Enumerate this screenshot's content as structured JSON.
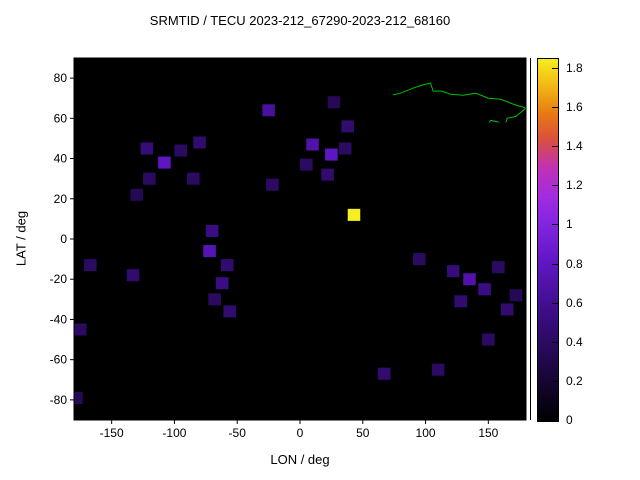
{
  "chart_data": {
    "type": "heatmap",
    "title": "SRMTID / TECU 2023-212_67290-2023-212_68160",
    "xlabel": "LON / deg",
    "ylabel": "LAT / deg",
    "xlim": [
      -180,
      180
    ],
    "ylim": [
      -90,
      90
    ],
    "x_ticks": [
      -150,
      -100,
      -50,
      0,
      50,
      100,
      150
    ],
    "y_ticks": [
      -80,
      -60,
      -40,
      -20,
      0,
      20,
      40,
      60,
      80
    ],
    "grid": false,
    "map_background": "#000000",
    "coastline_color": "#00c000",
    "colorbar": {
      "position": "right",
      "range": [
        0,
        1.85
      ],
      "ticks": [
        0,
        0.2,
        0.4,
        0.6,
        0.8,
        1,
        1.2,
        1.4,
        1.6,
        1.8
      ],
      "palette": [
        {
          "t": 0.0,
          "c": "#000000"
        },
        {
          "t": 0.15,
          "c": "#1e0745"
        },
        {
          "t": 0.3,
          "c": "#3c0d85"
        },
        {
          "t": 0.45,
          "c": "#6317c8"
        },
        {
          "t": 0.55,
          "c": "#8426e0"
        },
        {
          "t": 0.62,
          "c": "#a22ce0"
        },
        {
          "t": 0.7,
          "c": "#c031b5"
        },
        {
          "t": 0.78,
          "c": "#da513b"
        },
        {
          "t": 0.85,
          "c": "#e87a14"
        },
        {
          "t": 0.92,
          "c": "#f2b313"
        },
        {
          "t": 1.0,
          "c": "#f6ee20"
        }
      ]
    },
    "cell_size_deg": {
      "lon": 10,
      "lat": 6
    },
    "cells": [
      {
        "lon": -25,
        "lat": 64,
        "v": 0.65
      },
      {
        "lon": 27,
        "lat": 68,
        "v": 0.35
      },
      {
        "lon": 38,
        "lat": 56,
        "v": 0.45
      },
      {
        "lon": -122,
        "lat": 45,
        "v": 0.5
      },
      {
        "lon": -108,
        "lat": 38,
        "v": 0.8
      },
      {
        "lon": -95,
        "lat": 44,
        "v": 0.4
      },
      {
        "lon": -80,
        "lat": 48,
        "v": 0.45
      },
      {
        "lon": -120,
        "lat": 30,
        "v": 0.4
      },
      {
        "lon": -130,
        "lat": 22,
        "v": 0.35
      },
      {
        "lon": -85,
        "lat": 30,
        "v": 0.4
      },
      {
        "lon": -22,
        "lat": 27,
        "v": 0.4
      },
      {
        "lon": 10,
        "lat": 47,
        "v": 0.7
      },
      {
        "lon": 25,
        "lat": 42,
        "v": 0.8
      },
      {
        "lon": 5,
        "lat": 37,
        "v": 0.4
      },
      {
        "lon": 22,
        "lat": 32,
        "v": 0.45
      },
      {
        "lon": 36,
        "lat": 45,
        "v": 0.4
      },
      {
        "lon": 43,
        "lat": 12,
        "v": 1.85
      },
      {
        "lon": -70,
        "lat": 4,
        "v": 0.55
      },
      {
        "lon": -72,
        "lat": -6,
        "v": 0.75
      },
      {
        "lon": -58,
        "lat": -13,
        "v": 0.45
      },
      {
        "lon": -62,
        "lat": -22,
        "v": 0.55
      },
      {
        "lon": -68,
        "lat": -30,
        "v": 0.4
      },
      {
        "lon": -56,
        "lat": -36,
        "v": 0.45
      },
      {
        "lon": -167,
        "lat": -13,
        "v": 0.4
      },
      {
        "lon": -133,
        "lat": -18,
        "v": 0.45
      },
      {
        "lon": -175,
        "lat": -45,
        "v": 0.4
      },
      {
        "lon": 95,
        "lat": -10,
        "v": 0.4
      },
      {
        "lon": 122,
        "lat": -16,
        "v": 0.5
      },
      {
        "lon": 135,
        "lat": -20,
        "v": 0.7
      },
      {
        "lon": 147,
        "lat": -25,
        "v": 0.55
      },
      {
        "lon": 128,
        "lat": -31,
        "v": 0.45
      },
      {
        "lon": 158,
        "lat": -14,
        "v": 0.4
      },
      {
        "lon": 165,
        "lat": -35,
        "v": 0.45
      },
      {
        "lon": 150,
        "lat": -50,
        "v": 0.4
      },
      {
        "lon": 172,
        "lat": -28,
        "v": 0.35
      },
      {
        "lon": 67,
        "lat": -67,
        "v": 0.45
      },
      {
        "lon": 110,
        "lat": -65,
        "v": 0.4
      },
      {
        "lon": -178,
        "lat": -79,
        "v": 0.35
      }
    ]
  }
}
